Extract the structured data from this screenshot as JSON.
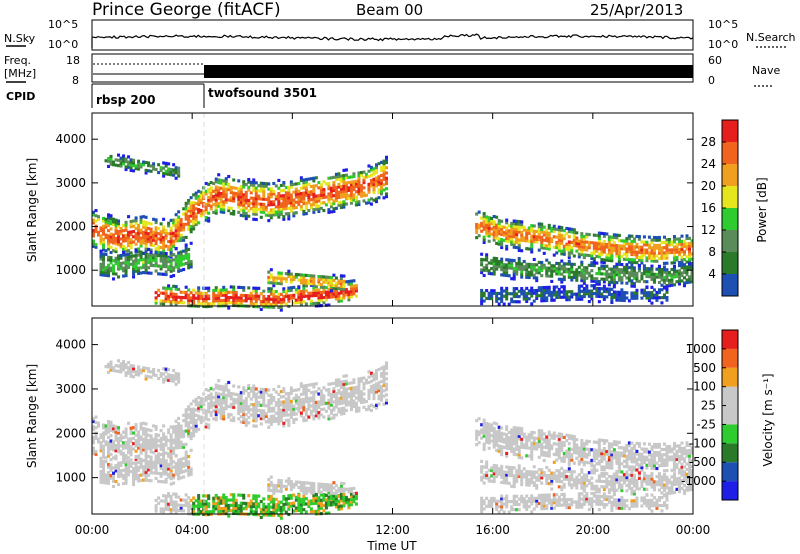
{
  "header": {
    "station": "Prince George (fitACF)",
    "beam": "Beam 00",
    "date": "25/Apr/2013"
  },
  "strips": {
    "nsky_label": "N.Sky",
    "nsky_ticks": [
      "10^5",
      "10^0"
    ],
    "nsearch_label": "N.Search",
    "nsearch_ticks": [
      "10^5",
      "10^0"
    ],
    "freq_label_1": "Freq.",
    "freq_label_2": "[MHz]",
    "freq_ticks": [
      "18",
      "8"
    ],
    "nave_label": "Nave",
    "nave_ticks": [
      "60",
      "0"
    ],
    "cpid_label": "CPID",
    "cpid_segments": [
      {
        "name": "rbsp 200",
        "start_h": 0.0
      },
      {
        "name": "twofsound 3501",
        "start_h": 4.5
      }
    ]
  },
  "colors": {
    "power": [
      "#1e1ee6",
      "#1e50b4",
      "#2a7a2a",
      "#5a8c5a",
      "#2ecc2e",
      "#e6e61e",
      "#f0a01e",
      "#f0641e",
      "#e61e1e"
    ],
    "velocity": [
      "#1e1ee6",
      "#1e50b4",
      "#2a7a2a",
      "#2ecc2e",
      "#c8c8c8",
      "#c8c8c8",
      "#f0a01e",
      "#f0641e",
      "#e61e1e"
    ]
  },
  "chart_data": [
    {
      "type": "heatmap",
      "title": "",
      "xlabel": "Time UT",
      "ylabel": "Slant Range [km]",
      "xlim": [
        0,
        24
      ],
      "ylim": [
        180,
        4600
      ],
      "x_ticks": [
        "00:00",
        "04:00",
        "08:00",
        "12:00",
        "16:00",
        "20:00",
        "00:00"
      ],
      "y_ticks": [
        "1000",
        "2000",
        "3000",
        "4000"
      ],
      "colorbar_label": "Power [dB]",
      "colorbar_ticks": [
        "28",
        "24",
        "20",
        "16",
        "12",
        "8",
        "4"
      ],
      "colorbar_range": [
        0,
        30
      ],
      "echo_bands": [
        {
          "t": [
            0.0,
            1.0,
            2.0,
            3.0,
            4.0,
            5.0,
            6.0,
            7.0,
            8.0,
            9.0,
            10.0,
            11.0,
            11.7
          ],
          "range_km": [
            1900,
            1700,
            1800,
            1650,
            2300,
            2700,
            2600,
            2550,
            2600,
            2700,
            2800,
            2900,
            3100
          ],
          "width_km": 450,
          "peak_db": 26
        },
        {
          "t": [
            0.5,
            1.5,
            2.5,
            3.5
          ],
          "range_km": [
            3500,
            3400,
            3300,
            3200
          ],
          "width_km": 150,
          "peak_db": 12
        },
        {
          "t": [
            0.3,
            1.0,
            2.0,
            3.0,
            4.0
          ],
          "range_km": [
            1100,
            1050,
            1150,
            1100,
            1300
          ],
          "width_km": 300,
          "peak_db": 14
        },
        {
          "t": [
            2.5,
            3.5,
            4.5,
            5.5,
            6.5,
            7.5,
            8.5,
            9.5,
            10.5
          ],
          "range_km": [
            400,
            350,
            320,
            350,
            320,
            300,
            380,
            420,
            500
          ],
          "width_km": 250,
          "peak_db": 28
        },
        {
          "t": [
            7.0,
            8.0,
            9.0,
            10.0
          ],
          "range_km": [
            800,
            750,
            700,
            650
          ],
          "width_km": 180,
          "peak_db": 22
        },
        {
          "t": [
            15.3,
            16.5,
            18.0,
            19.5,
            21.0,
            22.5,
            24.0
          ],
          "range_km": [
            2000,
            1800,
            1700,
            1550,
            1450,
            1400,
            1450
          ],
          "width_km": 350,
          "peak_db": 24
        },
        {
          "t": [
            15.5,
            17.0,
            18.5,
            20.0,
            21.5,
            23.0,
            24.0
          ],
          "range_km": [
            1100,
            1000,
            950,
            900,
            850,
            800,
            900
          ],
          "width_km": 250,
          "peak_db": 12
        },
        {
          "t": [
            15.5,
            17.0,
            18.5,
            20.0,
            21.5,
            23.0
          ],
          "range_km": [
            400,
            380,
            420,
            450,
            400,
            420
          ],
          "width_km": 200,
          "peak_db": 6
        }
      ]
    },
    {
      "type": "heatmap",
      "title": "",
      "xlabel": "Time UT",
      "ylabel": "Slant Range [km]",
      "xlim": [
        0,
        24
      ],
      "ylim": [
        180,
        4600
      ],
      "x_ticks": [
        "00:00",
        "04:00",
        "08:00",
        "12:00",
        "16:00",
        "20:00",
        "00:00"
      ],
      "y_ticks": [
        "1000",
        "2000",
        "3000",
        "4000"
      ],
      "colorbar_label": "Velocity [m s⁻¹]",
      "colorbar_ticks": [
        "1000",
        "500",
        "100",
        "25",
        "-25",
        "-100",
        "-500",
        "-1000"
      ],
      "note": "ground scatter shown in grey"
    }
  ]
}
